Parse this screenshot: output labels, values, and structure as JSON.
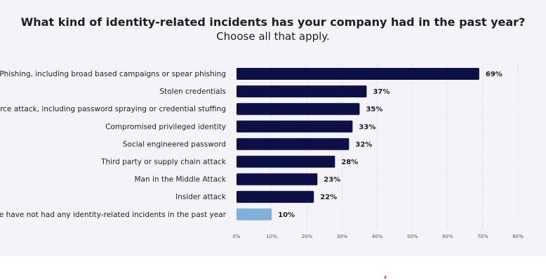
{
  "chart_data": {
    "type": "bar",
    "orientation": "horizontal",
    "title": "What kind of identity-related incidents has your company had in the past year?",
    "subtitle": "Choose all that apply.",
    "categories": [
      "Phishing, including broad based campaigns or spear phishing",
      "Stolen credentials",
      "Brute force attack, including password spraying or credential stuffing",
      "Compromised privileged identity",
      "Social engineered password",
      "Third party or supply chain attack",
      "Man in the Middle Attack",
      "Insider attack",
      "We have not had any identity-related incidents in the past year"
    ],
    "values": [
      69,
      37,
      35,
      33,
      32,
      28,
      23,
      22,
      10
    ],
    "value_labels": [
      "69%",
      "37%",
      "35%",
      "33%",
      "32%",
      "28%",
      "23%",
      "22%",
      "10%"
    ],
    "bar_colors": [
      "#0d0f45",
      "#0d0f45",
      "#0d0f45",
      "#0d0f45",
      "#0d0f45",
      "#0d0f45",
      "#0d0f45",
      "#0d0f45",
      "#7fb0dd"
    ],
    "xlim": [
      0,
      80
    ],
    "xticks": [
      0,
      10,
      20,
      30,
      40,
      50,
      60,
      70,
      80
    ],
    "xtick_labels": [
      "0%",
      "10%",
      "20%",
      "30%",
      "40%",
      "50%",
      "60%",
      "70%",
      "80%"
    ],
    "grid": "vertical dashed",
    "legend": "none",
    "xlabel": "",
    "ylabel": ""
  }
}
